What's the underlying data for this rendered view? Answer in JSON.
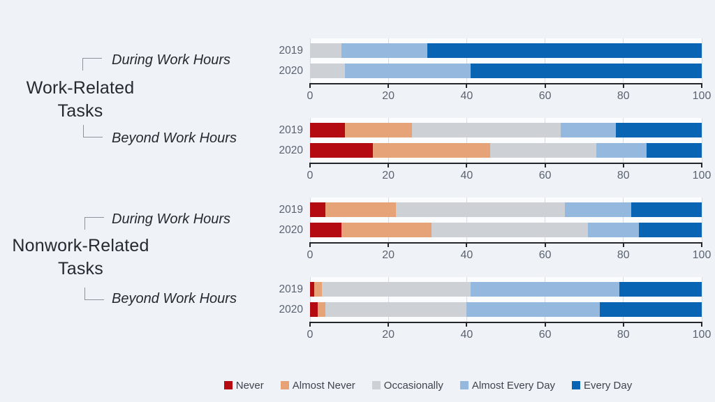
{
  "page": {
    "background": "#eff2f7"
  },
  "sections": [
    {
      "label_line1": "Work-Related",
      "label_line2": "Tasks",
      "sub_during": "During Work Hours",
      "sub_beyond": "Beyond Work Hours"
    },
    {
      "label_line1": "Nonwork-Related",
      "label_line2": "Tasks",
      "sub_during": "During Work Hours",
      "sub_beyond": "Beyond Work Hours"
    }
  ],
  "chart_data": {
    "type": "bar",
    "orientation": "horizontal",
    "stacked": true,
    "unit": "percent",
    "xlim": [
      0,
      100
    ],
    "x_ticks": [
      0,
      20,
      40,
      60,
      80,
      100
    ],
    "grid": true,
    "legend_position": "bottom",
    "legend": [
      {
        "label": "Never",
        "color": "#b30b11"
      },
      {
        "label": "Almost Never",
        "color": "#e7a378"
      },
      {
        "label": "Occasionally",
        "color": "#cdd0d4"
      },
      {
        "label": "Almost Every Day",
        "color": "#95b8de"
      },
      {
        "label": "Every Day",
        "color": "#0a64b4"
      }
    ],
    "charts": [
      {
        "section": "Work-Related Tasks",
        "subtitle": "During Work Hours",
        "rows": [
          {
            "year": "2019",
            "values": [
              0,
              0,
              8,
              22,
              70
            ]
          },
          {
            "year": "2020",
            "values": [
              0,
              0,
              9,
              32,
              59
            ]
          }
        ]
      },
      {
        "section": "Work-Related Tasks",
        "subtitle": "Beyond Work Hours",
        "rows": [
          {
            "year": "2019",
            "values": [
              9,
              17,
              38,
              14,
              22
            ]
          },
          {
            "year": "2020",
            "values": [
              16,
              30,
              27,
              13,
              14
            ]
          }
        ]
      },
      {
        "section": "Nonwork-Related Tasks",
        "subtitle": "During Work Hours",
        "rows": [
          {
            "year": "2019",
            "values": [
              4,
              18,
              43,
              17,
              18
            ]
          },
          {
            "year": "2020",
            "values": [
              8,
              23,
              40,
              13,
              16
            ]
          }
        ]
      },
      {
        "section": "Nonwork-Related Tasks",
        "subtitle": "Beyond Work Hours",
        "rows": [
          {
            "year": "2019",
            "values": [
              1,
              2,
              38,
              38,
              21
            ]
          },
          {
            "year": "2020",
            "values": [
              2,
              2,
              36,
              34,
              26
            ]
          }
        ]
      }
    ]
  }
}
